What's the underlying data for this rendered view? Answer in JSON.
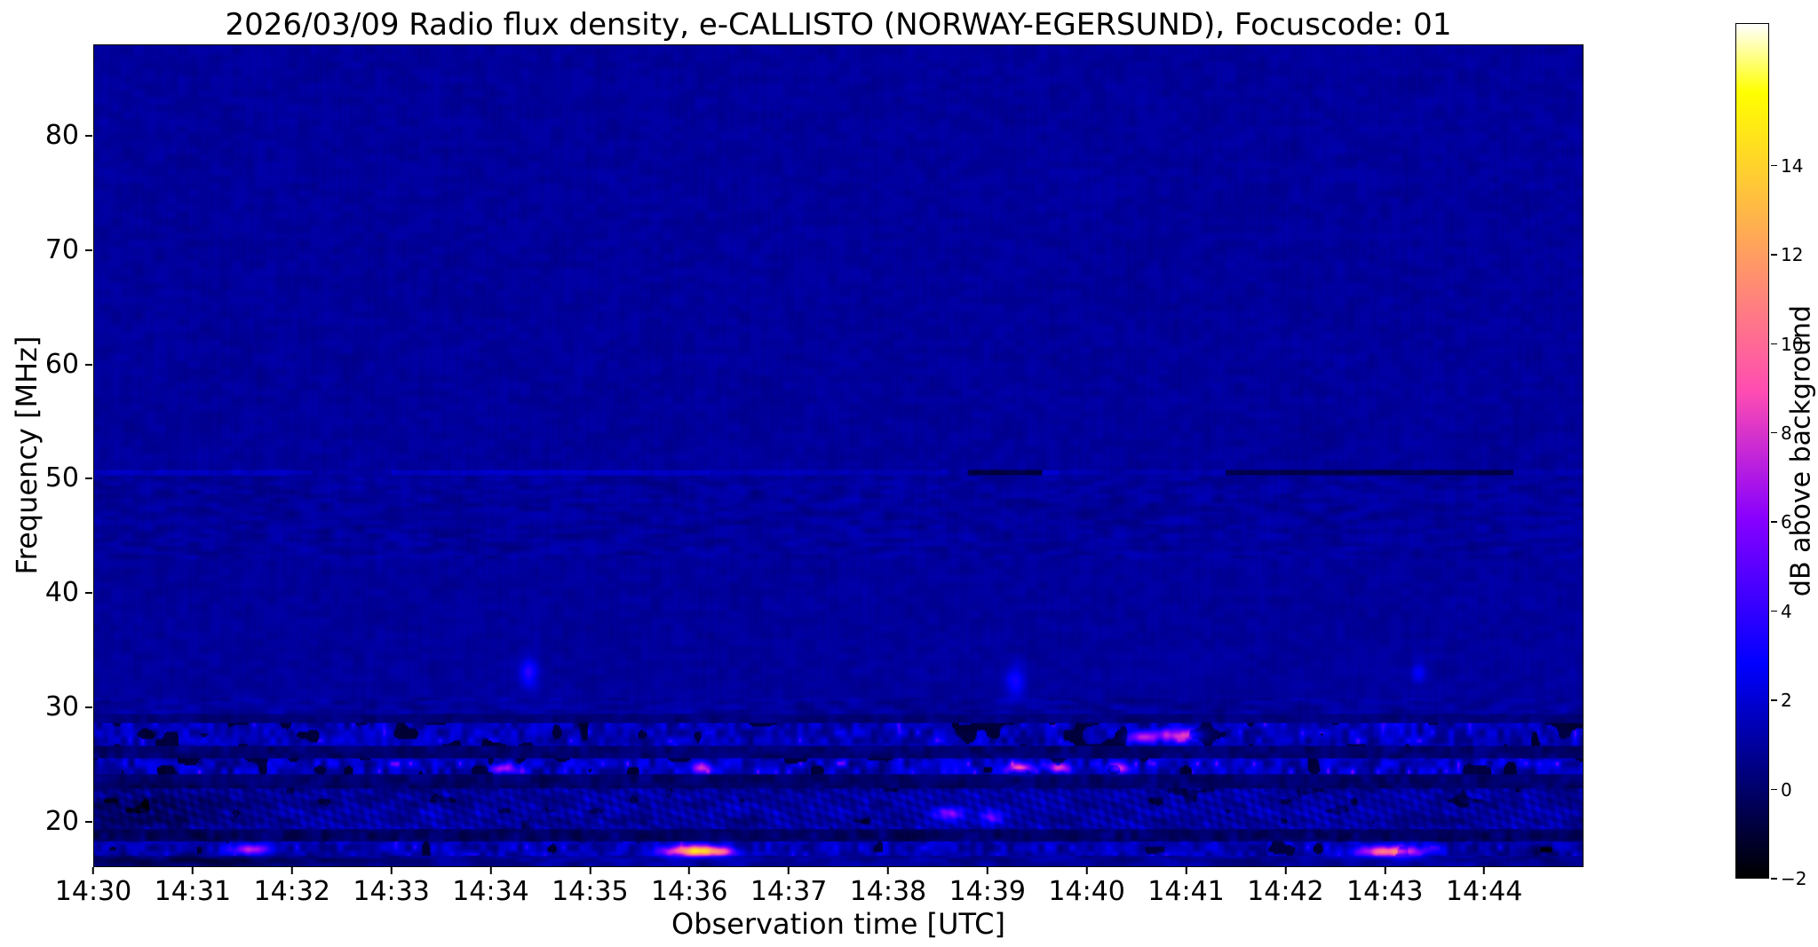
{
  "chart_data": {
    "type": "heatmap",
    "title": "2026/03/09  Radio flux density, e-CALLISTO (NORWAY-EGERSUND), Focuscode: 01",
    "xlabel": "Observation time [UTC]",
    "ylabel": "Frequency [MHz]",
    "colorbar_label": "dB above background",
    "x_ticks": [
      "14:30",
      "14:31",
      "14:32",
      "14:33",
      "14:34",
      "14:35",
      "14:36",
      "14:37",
      "14:38",
      "14:39",
      "14:40",
      "14:41",
      "14:42",
      "14:43",
      "14:44"
    ],
    "x_range_minutes": [
      0,
      15
    ],
    "y_ticks": [
      20,
      30,
      40,
      50,
      60,
      70,
      80
    ],
    "y_range_mhz": [
      16,
      88
    ],
    "colorbar_ticks": [
      14,
      12,
      10,
      8,
      6,
      4,
      2,
      0,
      -2
    ],
    "color_range_db": [
      -2,
      17.2
    ],
    "colormap": "gnuplot2",
    "background_level_db": 1.0,
    "grid": false,
    "legend": "none",
    "bands": [
      {
        "fmin": 30.8,
        "fmax": 88.0,
        "mode": "calm",
        "amp": 0.15
      },
      {
        "fmin": 43.0,
        "fmax": 50.2,
        "mode": "mottle",
        "amp": 0.5
      },
      {
        "fmin": 50.35,
        "fmax": 50.75,
        "mode": "segments",
        "amp": 0.3,
        "segments": [
          [
            0,
            2.2,
            0.7
          ],
          [
            2.2,
            3.0,
            0.15
          ],
          [
            3.0,
            6.2,
            0.8
          ],
          [
            6.2,
            8.6,
            0.45
          ],
          [
            8.6,
            8.8,
            0.0
          ],
          [
            8.8,
            9.55,
            -1.7
          ],
          [
            9.55,
            9.72,
            1.1
          ],
          [
            9.72,
            11.4,
            0.35
          ],
          [
            11.4,
            14.3,
            -1.5
          ],
          [
            14.3,
            15,
            0.25
          ]
        ]
      },
      {
        "fmin": 29.3,
        "fmax": 30.8,
        "mode": "mottle",
        "amp": 0.7
      },
      {
        "fmin": 28.5,
        "fmax": 29.3,
        "mode": "darkdash",
        "amp": 0.7
      },
      {
        "fmin": 26.6,
        "fmax": 28.5,
        "mode": "dash",
        "amp": 1.7,
        "gap": 0.2,
        "spot": 18
      },
      {
        "fmin": 25.4,
        "fmax": 26.6,
        "mode": "darkdash",
        "amp": 1.1
      },
      {
        "fmin": 24.0,
        "fmax": 25.4,
        "mode": "dash",
        "amp": 2.1,
        "gap": 0.26,
        "spot": 24
      },
      {
        "fmin": 22.9,
        "fmax": 24.0,
        "mode": "darkdash",
        "amp": 1.2
      },
      {
        "fmin": 19.3,
        "fmax": 22.9,
        "mode": "herring",
        "amp": 1.5
      },
      {
        "fmin": 18.1,
        "fmax": 19.3,
        "mode": "darkdash",
        "amp": 1.4
      },
      {
        "fmin": 16.9,
        "fmax": 18.1,
        "mode": "dash",
        "amp": 1.6,
        "gap": 0.15,
        "spot": 14
      },
      {
        "fmin": 16.0,
        "fmax": 16.9,
        "mode": "mottle",
        "amp": 0.9
      }
    ],
    "bright_events": [
      {
        "t": 6.07,
        "f": 17.35,
        "dt": 0.14,
        "df": 0.35,
        "v": 13.0
      },
      {
        "t": 6.32,
        "f": 17.3,
        "dt": 0.1,
        "df": 0.3,
        "v": 7.0
      },
      {
        "t": 5.8,
        "f": 17.3,
        "dt": 0.1,
        "df": 0.3,
        "v": 4.0
      },
      {
        "t": 13.07,
        "f": 17.3,
        "dt": 0.22,
        "df": 0.33,
        "v": 9.5
      },
      {
        "t": 1.57,
        "f": 17.5,
        "dt": 0.13,
        "df": 0.3,
        "v": 6.5
      },
      {
        "t": 10.92,
        "f": 27.5,
        "dt": 0.16,
        "df": 0.4,
        "v": 7.0
      },
      {
        "t": 10.55,
        "f": 27.3,
        "dt": 0.1,
        "df": 0.35,
        "v": 5.5
      },
      {
        "t": 9.33,
        "f": 24.6,
        "dt": 0.09,
        "df": 0.33,
        "v": 8.0
      },
      {
        "t": 9.72,
        "f": 24.6,
        "dt": 0.08,
        "df": 0.3,
        "v": 7.0
      },
      {
        "t": 10.32,
        "f": 24.6,
        "dt": 0.08,
        "df": 0.3,
        "v": 6.0
      },
      {
        "t": 4.12,
        "f": 24.6,
        "dt": 0.08,
        "df": 0.3,
        "v": 6.0
      },
      {
        "t": 6.12,
        "f": 24.6,
        "dt": 0.07,
        "df": 0.3,
        "v": 5.5
      },
      {
        "t": 4.38,
        "f": 33.0,
        "dt": 0.06,
        "df": 0.9,
        "v": 2.8
      },
      {
        "t": 9.28,
        "f": 32.2,
        "dt": 0.07,
        "df": 1.0,
        "v": 2.2
      },
      {
        "t": 13.35,
        "f": 33.0,
        "dt": 0.05,
        "df": 0.7,
        "v": 1.8
      },
      {
        "t": 8.62,
        "f": 20.6,
        "dt": 0.1,
        "df": 0.5,
        "v": 4.5
      },
      {
        "t": 9.05,
        "f": 20.3,
        "dt": 0.08,
        "df": 0.4,
        "v": 4.0
      },
      {
        "t": 0.6,
        "f": 21.0,
        "dt": 0.55,
        "df": 1.5,
        "v": -1.0
      },
      {
        "t": 1.2,
        "f": 16.4,
        "dt": 1.2,
        "df": 0.4,
        "v": -1.4
      },
      {
        "t": 14.55,
        "f": 17.1,
        "dt": 0.3,
        "df": 0.4,
        "v": -1.3
      }
    ]
  }
}
